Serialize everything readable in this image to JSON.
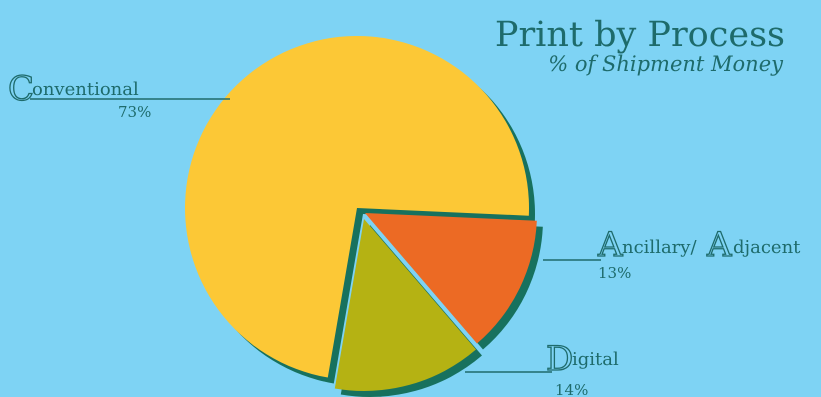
{
  "chart_data": {
    "type": "pie",
    "title": "Print by Process",
    "subtitle": "% of Shipment Money",
    "slices": [
      {
        "label": "Conventional",
        "cap": "C",
        "rest": "onventional",
        "value": 73,
        "pct_text": "73%",
        "color": "#FCC836"
      },
      {
        "label": "Ancillary/Adjacent",
        "cap": "A",
        "rest": "ncillary/",
        "cap2": "A",
        "rest2": "djacent",
        "value": 13,
        "pct_text": "13%",
        "color": "#EC6A24"
      },
      {
        "label": "Digital",
        "cap": "D",
        "rest": "igital",
        "value": 14,
        "pct_text": "14%",
        "color": "#B5B213"
      }
    ],
    "shadow_color": "#17715E",
    "background": "#7ED3F4",
    "text_color": "#1E6B6B"
  }
}
